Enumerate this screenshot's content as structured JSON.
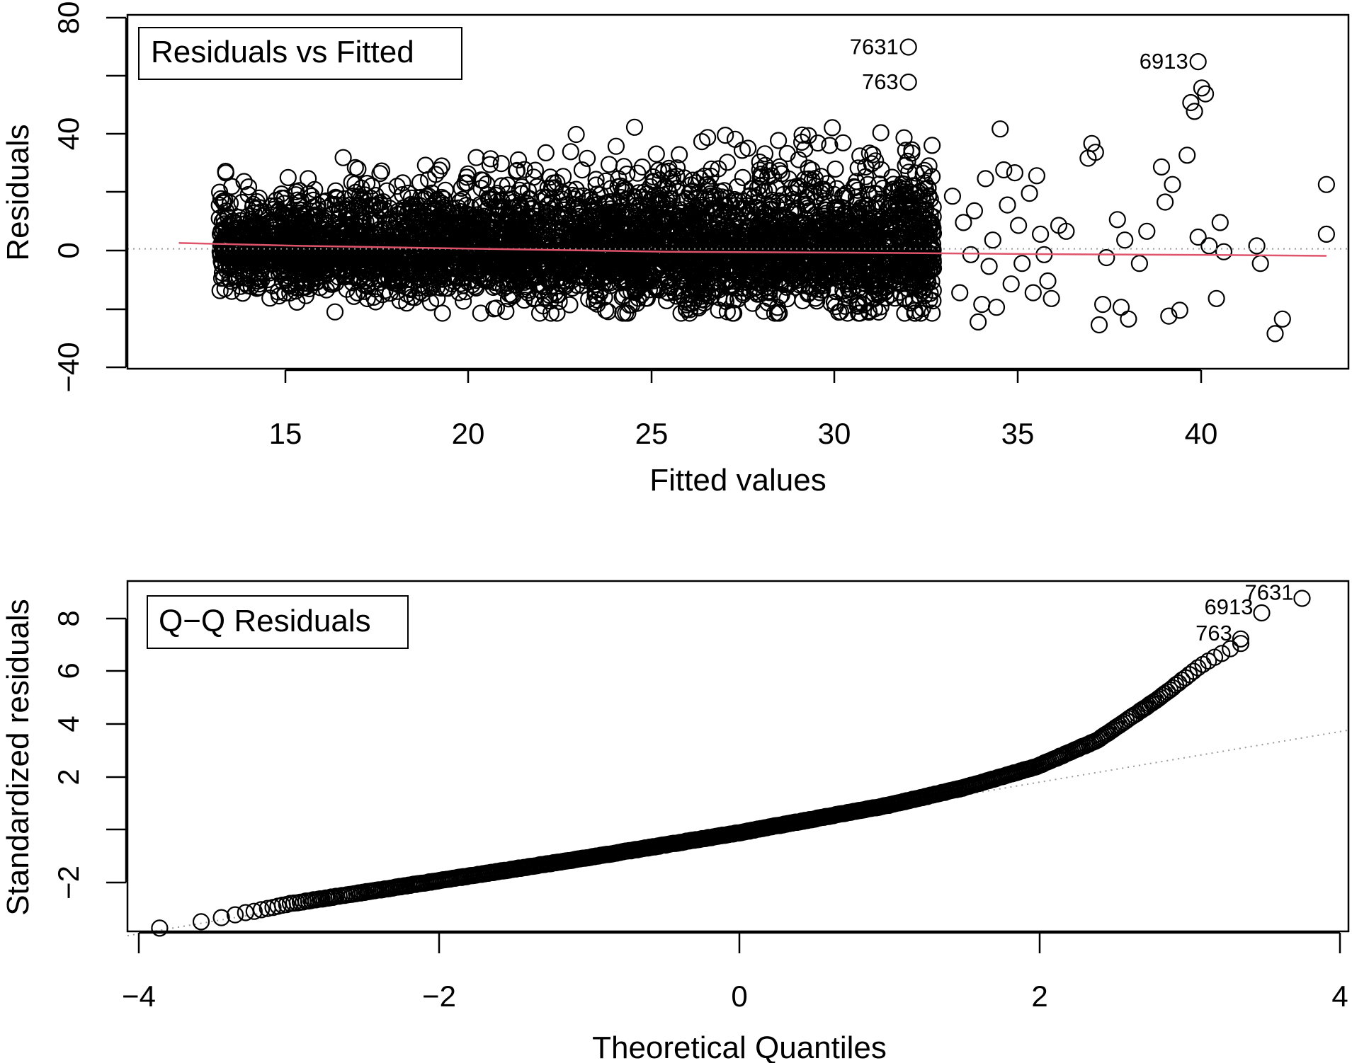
{
  "colors": {
    "points": "#000000",
    "smooth_line": "#DF536B",
    "reference_line": "#999999",
    "axes": "#000000"
  },
  "chart_data": [
    {
      "type": "scatter",
      "title": "Residuals vs Fitted",
      "xlabel": "Fitted values",
      "ylabel": "Residuals",
      "xlim": [
        10.3,
        43.6
      ],
      "ylim": [
        -41,
        80
      ],
      "xticks": [
        "15",
        "20",
        "25",
        "30",
        "35",
        "40"
      ],
      "yticks": [
        "−40",
        "0",
        "40",
        "80"
      ],
      "grid": false,
      "legend_position": "top-left",
      "points": {
        "dense_cloud": {
          "x_range": [
            12.8,
            32.3
          ],
          "residual_sd": 6.5,
          "spread_growth_per_unit": 0.12,
          "approx_count": 4400
        },
        "sparse_tail": [
          [
            32.8,
            18
          ],
          [
            33.0,
            -15
          ],
          [
            33.1,
            9
          ],
          [
            33.3,
            -2
          ],
          [
            33.4,
            13
          ],
          [
            33.5,
            -25
          ],
          [
            33.6,
            -19
          ],
          [
            33.7,
            24
          ],
          [
            33.8,
            -6
          ],
          [
            33.9,
            3
          ],
          [
            34.0,
            -20
          ],
          [
            34.1,
            41
          ],
          [
            34.2,
            27
          ],
          [
            34.3,
            15
          ],
          [
            34.4,
            -12
          ],
          [
            34.5,
            26
          ],
          [
            34.6,
            8
          ],
          [
            34.7,
            -5
          ],
          [
            34.9,
            19
          ],
          [
            35.0,
            -15
          ],
          [
            35.1,
            25
          ],
          [
            35.2,
            5
          ],
          [
            35.3,
            -2
          ],
          [
            35.4,
            -11
          ],
          [
            35.5,
            -17
          ],
          [
            35.7,
            8
          ],
          [
            35.9,
            6
          ],
          [
            36.5,
            31
          ],
          [
            36.6,
            36
          ],
          [
            36.7,
            33
          ],
          [
            36.8,
            -26
          ],
          [
            36.9,
            -19
          ],
          [
            37.0,
            -3
          ],
          [
            37.3,
            10
          ],
          [
            37.4,
            -20
          ],
          [
            37.5,
            3
          ],
          [
            37.6,
            -24
          ],
          [
            37.9,
            -5
          ],
          [
            38.1,
            6
          ],
          [
            38.5,
            28
          ],
          [
            38.6,
            16
          ],
          [
            38.7,
            -23
          ],
          [
            38.8,
            22
          ],
          [
            39.0,
            -21
          ],
          [
            39.2,
            32
          ],
          [
            39.3,
            50
          ],
          [
            39.4,
            47
          ],
          [
            39.5,
            4
          ],
          [
            39.6,
            55
          ],
          [
            39.7,
            53
          ],
          [
            39.8,
            1
          ],
          [
            40.0,
            -17
          ],
          [
            40.1,
            9
          ],
          [
            40.2,
            -1
          ],
          [
            41.1,
            1
          ],
          [
            41.2,
            -5
          ],
          [
            41.6,
            -29
          ],
          [
            41.8,
            -24
          ],
          [
            43.0,
            5
          ],
          [
            43.0,
            22
          ]
        ],
        "labeled": [
          {
            "id": "7631",
            "x": 31.6,
            "y": 69
          },
          {
            "id": "763",
            "x": 31.6,
            "y": 57
          },
          {
            "id": "6913",
            "x": 39.5,
            "y": 64
          }
        ]
      },
      "smooth_line": [
        [
          11.7,
          2.0
        ],
        [
          15,
          1.0
        ],
        [
          20,
          0.0
        ],
        [
          25,
          -1.0
        ],
        [
          30,
          -1.3
        ],
        [
          35,
          -1.8
        ],
        [
          40,
          -2.1
        ],
        [
          43.0,
          -2.4
        ]
      ],
      "reference_line": {
        "y": 0,
        "style": "dotted"
      }
    },
    {
      "type": "scatter",
      "title": "Q−Q Residuals",
      "xlabel": "Theoretical Quantiles",
      "ylabel": "Standardized residuals",
      "xlim": [
        -4.08,
        4.08
      ],
      "ylim": [
        -3.4,
        8.7
      ],
      "xticks": [
        "−4",
        "−2",
        "0",
        "2",
        "4"
      ],
      "yticks": [
        "−2",
        "",
        "2",
        "4",
        "6",
        "8"
      ],
      "grid": false,
      "legend_position": "top-left",
      "qq": {
        "n": 9000,
        "quantile_curve": [
          [
            -3.78,
            -3.28
          ],
          [
            -3.0,
            -2.45
          ],
          [
            -2.0,
            -1.65
          ],
          [
            -1.0,
            -0.85
          ],
          [
            0.0,
            0.0
          ],
          [
            1.0,
            0.95
          ],
          [
            1.5,
            1.55
          ],
          [
            2.0,
            2.3
          ],
          [
            2.4,
            3.2
          ],
          [
            2.8,
            4.6
          ],
          [
            3.1,
            5.8
          ],
          [
            3.3,
            6.4
          ]
        ],
        "labeled": [
          {
            "id": "7631",
            "x": 3.77,
            "y": 8.1
          },
          {
            "id": "6913",
            "x": 3.5,
            "y": 7.6
          },
          {
            "id": "763",
            "x": 3.36,
            "y": 6.7
          }
        ]
      },
      "reference_line": {
        "slope": 0.87,
        "intercept": 0.0,
        "style": "dotted"
      }
    }
  ]
}
